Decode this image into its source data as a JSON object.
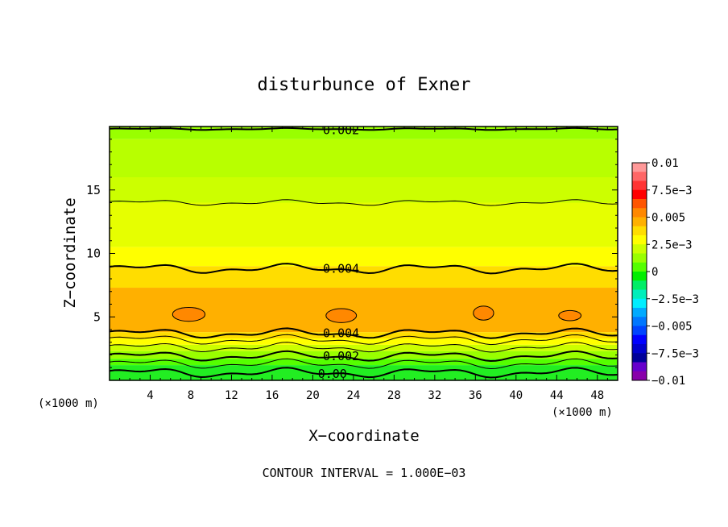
{
  "chart_data": {
    "type": "contour",
    "title": "disturbunce of Exner",
    "xlabel": "X−coordinate",
    "ylabel": "Z−coordinate",
    "x_unit_left": "(×1000 m)",
    "x_unit_right": "(×1000 m)",
    "footer": "CONTOUR INTERVAL = 1.000E−03",
    "xlim": [
      0,
      50
    ],
    "ylim": [
      0,
      20
    ],
    "x_ticks": [
      4,
      8,
      12,
      16,
      20,
      24,
      28,
      32,
      36,
      40,
      44,
      48
    ],
    "y_ticks": [
      5,
      10,
      15
    ],
    "contour_interval": 0.001,
    "colorbar": {
      "range": [
        -0.01,
        0.01
      ],
      "tick_labels": [
        "0.01",
        "7.5e−3",
        "0.005",
        "2.5e−3",
        "0",
        "−2.5e−3",
        "−0.005",
        "−7.5e−3",
        "−0.01"
      ],
      "colors": [
        "#ff9999",
        "#ff6666",
        "#ff3333",
        "#ff0000",
        "#ff5500",
        "#ff8800",
        "#ffb000",
        "#ffdd00",
        "#ffff00",
        "#ccff00",
        "#99ff00",
        "#55ff00",
        "#00ee00",
        "#00ee66",
        "#00eebb",
        "#00eeff",
        "#00aaff",
        "#0077ff",
        "#0044ff",
        "#0000ff",
        "#0000cc",
        "#000099",
        "#6600cc",
        "#8800aa"
      ]
    },
    "contour_labels": [
      {
        "text": "0.002",
        "x": 21,
        "z": 19.7
      },
      {
        "text": "0.004",
        "x": 21,
        "z": 8.8
      },
      {
        "text": "0.004",
        "x": 21,
        "z": 3.7
      },
      {
        "text": "0.002",
        "x": 21,
        "z": 1.9
      },
      {
        "text": "0.00",
        "x": 20.5,
        "z": 0.5
      }
    ],
    "bands": [
      {
        "z": [
          19.0,
          20.0
        ],
        "color": "#99ff00"
      },
      {
        "z": [
          16.0,
          19.0
        ],
        "color": "#b8ff00"
      },
      {
        "z": [
          14.0,
          16.0
        ],
        "color": "#ccff00"
      },
      {
        "z": [
          10.5,
          14.0
        ],
        "color": "#e6ff00"
      },
      {
        "z": [
          9.0,
          10.5
        ],
        "color": "#ffff00"
      },
      {
        "z": [
          7.3,
          9.0
        ],
        "color": "#ffdd00"
      },
      {
        "z": [
          3.8,
          7.3
        ],
        "color": "#ffb000"
      },
      {
        "z": [
          3.3,
          3.8
        ],
        "color": "#ffdd00"
      },
      {
        "z": [
          2.8,
          3.3
        ],
        "color": "#ffff00"
      },
      {
        "z": [
          2.3,
          2.8
        ],
        "color": "#ccff00"
      },
      {
        "z": [
          1.7,
          2.3
        ],
        "color": "#99ff00"
      },
      {
        "z": [
          1.2,
          1.7
        ],
        "color": "#55ff00"
      },
      {
        "z": [
          0.0,
          1.2
        ],
        "color": "#22ee22"
      }
    ],
    "contours": [
      {
        "z": 19.8,
        "amp": 0.05,
        "weight": "thick"
      },
      {
        "z": 14.0,
        "amp": 0.15,
        "weight": "thin"
      },
      {
        "z": 8.8,
        "amp": 0.25,
        "weight": "thick"
      },
      {
        "z": 3.7,
        "amp": 0.25,
        "weight": "thick"
      },
      {
        "z": 3.2,
        "amp": 0.25,
        "weight": "thin"
      },
      {
        "z": 2.6,
        "amp": 0.25,
        "weight": "thin"
      },
      {
        "z": 1.9,
        "amp": 0.25,
        "weight": "thick"
      },
      {
        "z": 1.3,
        "amp": 0.25,
        "weight": "thin"
      },
      {
        "z": 0.6,
        "amp": 0.25,
        "weight": "thick"
      }
    ],
    "blobs": [
      {
        "x": 7.8,
        "z": 5.2,
        "w": 1.6,
        "h": 0.55
      },
      {
        "x": 22.8,
        "z": 5.1,
        "w": 1.5,
        "h": 0.55
      },
      {
        "x": 36.8,
        "z": 5.3,
        "w": 1.0,
        "h": 0.55
      },
      {
        "x": 45.3,
        "z": 5.1,
        "w": 1.1,
        "h": 0.4
      }
    ]
  }
}
